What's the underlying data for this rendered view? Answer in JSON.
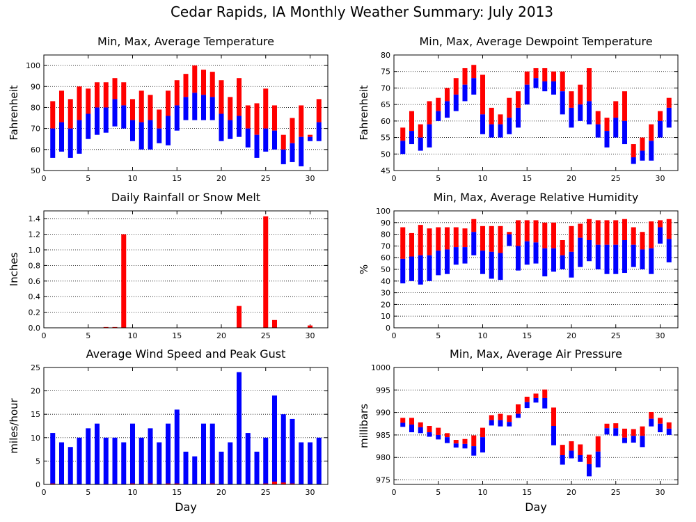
{
  "page_title": "Cedar Rapids, IA Monthly Weather Summary: July 2013",
  "colors": {
    "max_bar": "#ff0000",
    "min_bar": "#0000ff"
  },
  "chart_data": [
    {
      "id": "temperature",
      "type": "bar",
      "style": "floating-range",
      "title": "Min, Max, Average Temperature",
      "xlabel": "",
      "ylabel": "Fahrenheit",
      "xlim": [
        0,
        32
      ],
      "ylim": [
        50,
        105
      ],
      "xticks": [
        0,
        5,
        10,
        15,
        20,
        25,
        30
      ],
      "yticks": [
        50,
        60,
        70,
        80,
        90,
        100
      ],
      "grid": true,
      "x": [
        1,
        2,
        3,
        4,
        5,
        6,
        7,
        8,
        9,
        10,
        11,
        12,
        13,
        14,
        15,
        16,
        17,
        18,
        19,
        20,
        21,
        22,
        23,
        24,
        25,
        26,
        27,
        28,
        29,
        30,
        31
      ],
      "min": [
        56,
        59,
        56,
        58,
        65,
        67,
        68,
        71,
        70,
        64,
        60,
        60,
        63,
        62,
        69,
        74,
        74,
        74,
        74,
        64,
        65,
        66,
        61,
        56,
        59,
        60,
        53,
        54,
        52,
        64,
        64
      ],
      "avg": [
        70,
        73,
        70,
        74,
        77,
        80,
        80,
        84,
        81,
        74,
        73,
        74,
        70,
        76,
        81,
        85,
        87,
        86,
        85,
        77,
        74,
        76,
        70,
        67,
        70,
        69,
        60,
        63,
        66,
        66,
        73
      ],
      "max": [
        83,
        88,
        84,
        90,
        89,
        92,
        92,
        94,
        92,
        84,
        88,
        86,
        79,
        88,
        93,
        96,
        100,
        98,
        97,
        93,
        85,
        94,
        81,
        82,
        89,
        81,
        67,
        75,
        81,
        67,
        84
      ]
    },
    {
      "id": "dewpoint",
      "type": "bar",
      "style": "floating-range",
      "title": "Min, Max, Average Dewpoint Temperature",
      "xlabel": "",
      "ylabel": "Fahrenheit",
      "xlim": [
        0,
        32
      ],
      "ylim": [
        45,
        80
      ],
      "xticks": [
        0,
        5,
        10,
        15,
        20,
        25,
        30
      ],
      "yticks": [
        45,
        50,
        55,
        60,
        65,
        70,
        75,
        80
      ],
      "grid": true,
      "x": [
        1,
        2,
        3,
        4,
        5,
        6,
        7,
        8,
        9,
        10,
        11,
        12,
        13,
        14,
        15,
        16,
        17,
        18,
        19,
        20,
        21,
        22,
        23,
        24,
        25,
        26,
        27,
        28,
        29,
        30,
        31
      ],
      "min": [
        50,
        53,
        51,
        52,
        60,
        61,
        63,
        66,
        68,
        56,
        55,
        55,
        56,
        58,
        65,
        70,
        69,
        68,
        62,
        58,
        60,
        59,
        55,
        52,
        55,
        53,
        47,
        48,
        48,
        55,
        58
      ],
      "avg": [
        54,
        57,
        55,
        59,
        63,
        66,
        68,
        71,
        73,
        62,
        59,
        59,
        61,
        64,
        71,
        73,
        72,
        72,
        69,
        64,
        65,
        66,
        59,
        57,
        61,
        60,
        49,
        51,
        54,
        60,
        64
      ],
      "max": [
        58,
        63,
        59,
        66,
        67,
        70,
        73,
        76,
        77,
        74,
        64,
        62,
        67,
        69,
        75,
        76,
        76,
        75,
        75,
        69,
        71,
        76,
        63,
        61,
        66,
        69,
        53,
        55,
        59,
        63,
        67
      ]
    },
    {
      "id": "rainfall",
      "type": "bar",
      "title": "Daily Rainfall or Snow Melt",
      "xlabel": "",
      "ylabel": "Inches",
      "xlim": [
        0,
        32
      ],
      "ylim": [
        0,
        1.5
      ],
      "xticks": [
        0,
        5,
        10,
        15,
        20,
        25,
        30
      ],
      "yticks": [
        "0.0",
        "0.2",
        "0.4",
        "0.6",
        "0.8",
        "1.0",
        "1.2",
        "1.4"
      ],
      "grid": true,
      "x": [
        7,
        8,
        9,
        22,
        25,
        26,
        30
      ],
      "values": [
        0.01,
        0.01,
        1.2,
        0.28,
        1.43,
        0.1,
        0.03
      ]
    },
    {
      "id": "humidity",
      "type": "bar",
      "style": "floating-range",
      "title": "Min, Max, Average Relative Humidity",
      "xlabel": "",
      "ylabel": "%",
      "xlim": [
        0,
        32
      ],
      "ylim": [
        0,
        100
      ],
      "xticks": [
        0,
        5,
        10,
        15,
        20,
        25,
        30
      ],
      "yticks": [
        0,
        10,
        20,
        30,
        40,
        50,
        60,
        70,
        80,
        90,
        100
      ],
      "grid": true,
      "x": [
        1,
        2,
        3,
        4,
        5,
        6,
        7,
        8,
        9,
        10,
        11,
        12,
        13,
        14,
        15,
        16,
        17,
        18,
        19,
        20,
        21,
        22,
        23,
        24,
        25,
        26,
        27,
        28,
        29,
        30,
        31
      ],
      "min": [
        38,
        40,
        37,
        40,
        45,
        46,
        54,
        55,
        62,
        46,
        42,
        41,
        70,
        49,
        54,
        55,
        44,
        48,
        50,
        43,
        52,
        57,
        50,
        46,
        46,
        47,
        52,
        50,
        46,
        72,
        56
      ],
      "avg": [
        59,
        61,
        62,
        62,
        66,
        67,
        69,
        69,
        82,
        66,
        65,
        64,
        80,
        70,
        74,
        73,
        68,
        68,
        62,
        65,
        77,
        75,
        71,
        71,
        71,
        75,
        71,
        67,
        68,
        86,
        76
      ],
      "max": [
        86,
        81,
        88,
        85,
        86,
        86,
        86,
        85,
        93,
        87,
        87,
        87,
        82,
        92,
        92,
        92,
        90,
        90,
        75,
        87,
        89,
        93,
        92,
        92,
        92,
        93,
        86,
        82,
        91,
        92,
        93
      ]
    },
    {
      "id": "wind",
      "type": "bar",
      "title": "Average Wind Speed and Peak Gust",
      "xlabel": "Day",
      "ylabel": "miles/hour",
      "xlim": [
        0,
        32
      ],
      "ylim": [
        0,
        25
      ],
      "xticks": [
        0,
        5,
        10,
        15,
        20,
        25,
        30
      ],
      "yticks": [
        0,
        5,
        10,
        15,
        20,
        25
      ],
      "grid": true,
      "x": [
        1,
        2,
        3,
        4,
        5,
        6,
        7,
        8,
        9,
        10,
        11,
        12,
        13,
        14,
        15,
        16,
        17,
        18,
        19,
        20,
        21,
        22,
        23,
        24,
        25,
        26,
        27,
        28,
        29,
        30,
        31
      ],
      "series": [
        {
          "values": [
            0.2,
            0,
            0,
            0,
            0,
            0,
            0.1,
            0.1,
            0,
            0.2,
            0.1,
            0.2,
            0,
            0.2,
            0.2,
            0,
            0,
            0.1,
            0.2,
            0,
            0,
            0,
            0,
            0,
            0.2,
            0.6,
            0.4,
            0.2,
            0,
            0,
            0
          ]
        },
        {
          "values": [
            11,
            9,
            8,
            10,
            12,
            13,
            10,
            10,
            9,
            13,
            10,
            12,
            9,
            13,
            16,
            7,
            6,
            13,
            13,
            7,
            9,
            24,
            11,
            7,
            10,
            19,
            15,
            14,
            9,
            9,
            10
          ]
        }
      ]
    },
    {
      "id": "pressure",
      "type": "bar",
      "style": "floating-range",
      "title": "Min, Max, Average Air Pressure",
      "xlabel": "Day",
      "ylabel": "millibars",
      "xlim": [
        0,
        32
      ],
      "ylim": [
        974,
        1000
      ],
      "xticks": [
        0,
        5,
        10,
        15,
        20,
        25,
        30
      ],
      "yticks": [
        975,
        980,
        985,
        990,
        995,
        1000
      ],
      "grid": true,
      "x": [
        1,
        2,
        3,
        4,
        5,
        6,
        7,
        8,
        9,
        10,
        11,
        12,
        13,
        14,
        15,
        16,
        17,
        18,
        19,
        20,
        21,
        22,
        23,
        24,
        25,
        26,
        27,
        28,
        29,
        30,
        31
      ],
      "min": [
        986.8,
        985.6,
        985.4,
        984.6,
        984.0,
        983.2,
        982.2,
        982.0,
        980.4,
        981.1,
        987.1,
        986.9,
        986.9,
        988.8,
        991.0,
        992.2,
        990.9,
        982.7,
        978.4,
        979.8,
        979.0,
        975.8,
        977.8,
        985.1,
        984.8,
        983.2,
        983.3,
        982.3,
        986.9,
        985.6,
        985.0
      ],
      "avg": [
        987.7,
        987.3,
        986.7,
        985.6,
        985.0,
        984.5,
        983.1,
        983.0,
        982.5,
        984.5,
        988.3,
        988.3,
        987.9,
        989.7,
        992.3,
        993.2,
        993.2,
        987.0,
        980.5,
        981.5,
        980.5,
        978.5,
        981.3,
        986.5,
        986.5,
        984.4,
        984.8,
        984.8,
        988.6,
        987.5,
        986.4
      ],
      "max": [
        988.8,
        988.8,
        987.8,
        987.0,
        986.6,
        985.4,
        983.9,
        984.1,
        984.9,
        986.6,
        989.4,
        989.7,
        989.4,
        991.8,
        993.5,
        994.2,
        995.1,
        991.1,
        982.8,
        983.6,
        982.9,
        980.6,
        984.7,
        987.5,
        987.6,
        986.4,
        986.3,
        986.9,
        990.1,
        988.8,
        987.8
      ]
    }
  ]
}
